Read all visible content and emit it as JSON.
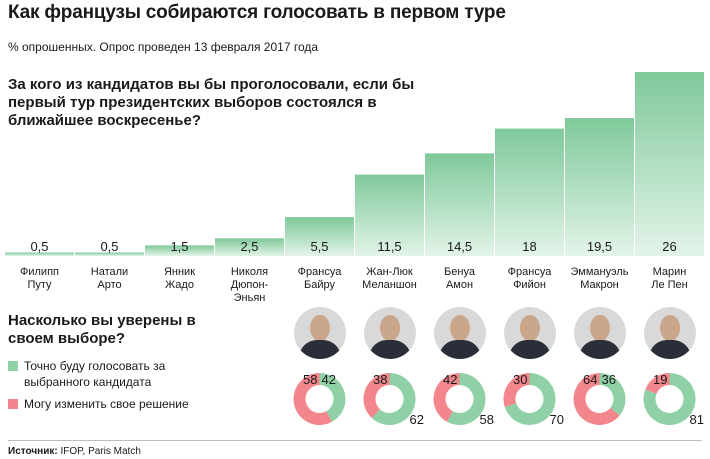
{
  "title": "Как французы собираются голосовать в первом туре",
  "subtitle": "% опрошенных. Опрос проведен 13 февраля 2017 года",
  "question": "За кого из кандидатов вы бы проголосовали, если бы первый тур президентских выборов состоялся в ближайшее воскресенье?",
  "confidence_question": "Насколько вы уверены в своем выборе?",
  "legend": [
    {
      "label": "Точно буду голосовать за выбранного кандидата",
      "color": "#8fd0a6"
    },
    {
      "label": "Могу изменить свое решение",
      "color": "#f2868c"
    }
  ],
  "source_label": "Источник:",
  "source_text": "IFOP, Paris Match",
  "colors": {
    "bar_top": "#7fc99a",
    "bar_bottom": "#e3f4e9",
    "sure": "#8fd0a6",
    "unsure": "#f2868c"
  },
  "chart_data": [
    {
      "type": "bar",
      "categories": [
        "Филипп Путу",
        "Натали Арто",
        "Янник Жадо",
        "Николя Дюпон-Эньян",
        "Франсуа Байру",
        "Жан-Люк Меланшон",
        "Бенуа Амон",
        "Франсуа Фийон",
        "Эммануэль Макрон",
        "Марин Ле Пен"
      ],
      "category_lines": [
        [
          "Филипп",
          "Путу"
        ],
        [
          "Натали",
          "Арто"
        ],
        [
          "Янник",
          "Жадо"
        ],
        [
          "Николя",
          "Дюпон-",
          "Эньян"
        ],
        [
          "Франсуа",
          "Байру"
        ],
        [
          "Жан-Люк",
          "Меланшон"
        ],
        [
          "Бенуа",
          "Амон"
        ],
        [
          "Франсуа",
          "Фийон"
        ],
        [
          "Эммануэль",
          "Макрон"
        ],
        [
          "Марин",
          "Ле Пен"
        ]
      ],
      "values": [
        0.5,
        0.5,
        1.5,
        2.5,
        5.5,
        11.5,
        14.5,
        18,
        19.5,
        26
      ],
      "value_labels": [
        "0,5",
        "0,5",
        "1,5",
        "2,5",
        "5,5",
        "11,5",
        "14,5",
        "18",
        "19,5",
        "26"
      ],
      "ylim": [
        0,
        26
      ]
    },
    {
      "type": "pie",
      "categories": [
        "Франсуа Байру",
        "Жан-Люк Меланшон",
        "Бенуа Амон",
        "Франсуа Фийон",
        "Эммануэль Макрон",
        "Марин Ле Пен"
      ],
      "series": [
        {
          "name": "Точно буду голосовать за выбранного кандидата",
          "values": [
            42,
            62,
            58,
            70,
            36,
            81
          ]
        },
        {
          "name": "Могу изменить свое решение",
          "values": [
            58,
            38,
            42,
            30,
            64,
            19
          ]
        }
      ]
    }
  ]
}
